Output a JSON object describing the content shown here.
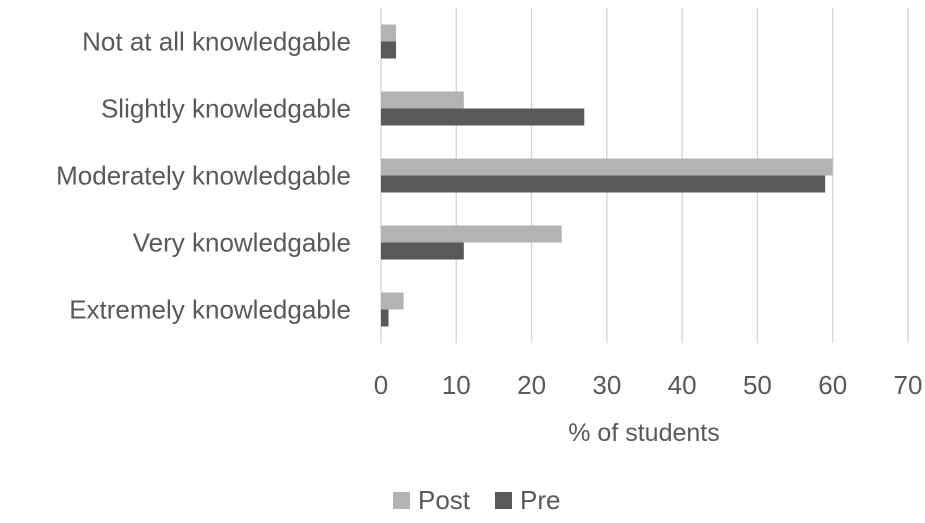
{
  "chart_data": {
    "type": "bar",
    "orientation": "horizontal",
    "categories": [
      "Not at all knowledgable",
      "Slightly knowledgable",
      "Moderately knowledgable",
      "Very knowledgable",
      "Extremely knowledgable"
    ],
    "series": [
      {
        "name": "Post",
        "color": "#b3b3b3",
        "values": [
          2,
          11,
          60,
          24,
          3
        ]
      },
      {
        "name": "Pre",
        "color": "#595959",
        "values": [
          2,
          27,
          59,
          11,
          1
        ]
      }
    ],
    "xlabel": "% of students",
    "xlim": [
      0,
      70
    ],
    "xticks": [
      0,
      10,
      20,
      30,
      40,
      50,
      60,
      70
    ],
    "grid": true,
    "legend": "bottom"
  }
}
